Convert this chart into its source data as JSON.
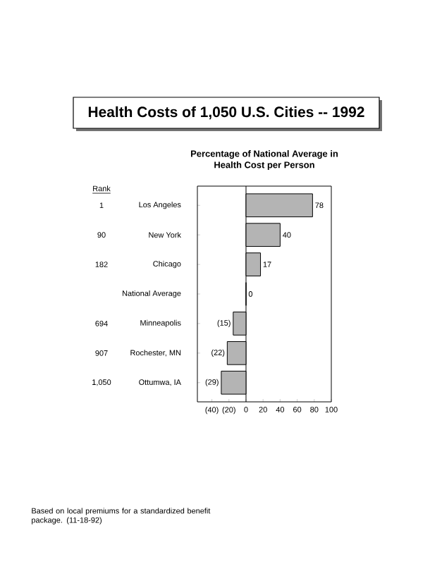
{
  "chart_data": {
    "type": "bar",
    "orientation": "horizontal",
    "title": "Health Costs of 1,050 U.S. Cities -- 1992",
    "subtitle": "Percentage of National Average in Health Cost per Person",
    "categories": [
      "Los Angeles",
      "New York",
      "Chicago",
      "National Average",
      "Minneapolis",
      "Rochester, MN",
      "Ottumwa, IA"
    ],
    "values": [
      78,
      40,
      17,
      0,
      -15,
      -22,
      -29
    ],
    "value_labels": [
      "78",
      "40",
      "17",
      "0",
      "(15)",
      "(22)",
      "(29)"
    ],
    "color": "#b4b4b4",
    "xlim": [
      -57,
      100
    ],
    "xticks": [
      {
        "value": -40,
        "label": "(40)"
      },
      {
        "value": -20,
        "label": "(20)"
      },
      0,
      20,
      40,
      60,
      80,
      100
    ],
    "annotations": [
      "Rank",
      "1",
      "90",
      "182",
      "694",
      "907",
      "1,050",
      "Based on local premiums for a standardized benefit package. (11-18-92)"
    ]
  }
}
